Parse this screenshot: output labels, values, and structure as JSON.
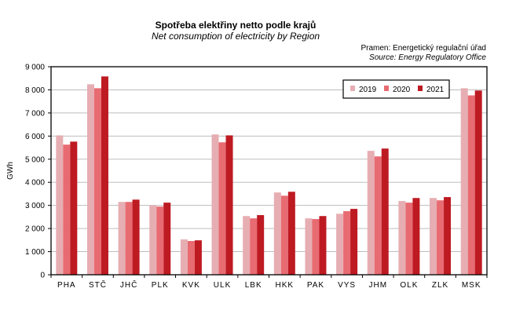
{
  "chart_data": {
    "type": "bar",
    "title": "Spotřeba elektřiny netto podle krajů",
    "subtitle": "Net consumption  of electricity by Region",
    "source_cz": "Pramen: Energetický regulační úřad",
    "source_en": "Source: Energy Regulatory Office",
    "xlabel": "",
    "ylabel": "GWh",
    "ylim": [
      0,
      9000
    ],
    "yticks": [
      0,
      1000,
      2000,
      3000,
      4000,
      5000,
      6000,
      7000,
      8000,
      9000
    ],
    "ytick_labels": [
      "0",
      "1 000",
      "2 000",
      "3 000",
      "4 000",
      "5 000",
      "6 000",
      "7 000",
      "8 000",
      "9 000"
    ],
    "grid": true,
    "legend_position": "top-right",
    "categories": [
      "PHA",
      "STČ",
      "JHČ",
      "PLK",
      "KVK",
      "ULK",
      "LBK",
      "HKK",
      "PAK",
      "VYS",
      "JHM",
      "OLK",
      "ZLK",
      "MSK"
    ],
    "series": [
      {
        "name": "2019",
        "color": "#e6aeb2",
        "values": [
          6030,
          8240,
          3150,
          3000,
          1530,
          6070,
          2540,
          3560,
          2440,
          2640,
          5360,
          3190,
          3320,
          8070
        ]
      },
      {
        "name": "2020",
        "color": "#e86b72",
        "values": [
          5630,
          8070,
          3150,
          2950,
          1460,
          5730,
          2440,
          3420,
          2410,
          2750,
          5120,
          3120,
          3220,
          7760
        ]
      },
      {
        "name": "2021",
        "color": "#be1a22",
        "values": [
          5760,
          8580,
          3250,
          3120,
          1490,
          6030,
          2580,
          3590,
          2540,
          2850,
          5460,
          3320,
          3360,
          7970
        ]
      }
    ]
  }
}
